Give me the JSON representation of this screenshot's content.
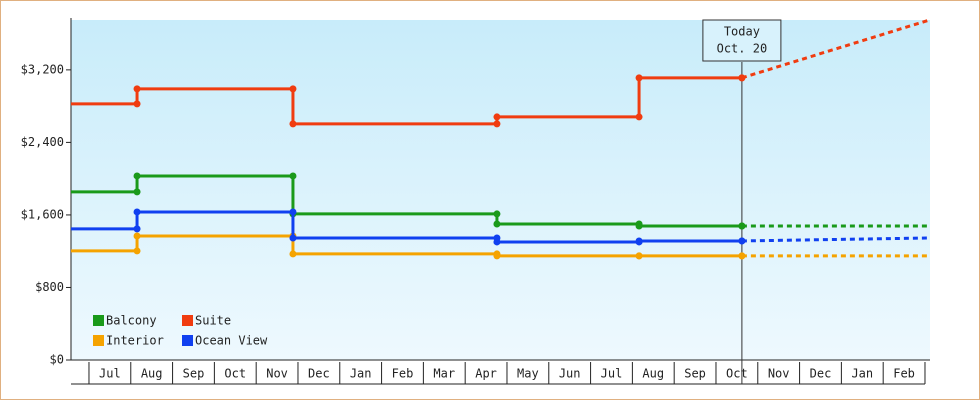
{
  "chart_data": {
    "type": "step-line",
    "xlim": [
      -0.43,
      20.12
    ],
    "xticks": [
      {
        "value": 0.5,
        "label": "Jul"
      },
      {
        "value": 1.5,
        "label": "Aug"
      },
      {
        "value": 2.5,
        "label": "Sep"
      },
      {
        "value": 3.5,
        "label": "Oct"
      },
      {
        "value": 4.5,
        "label": "Nov"
      },
      {
        "value": 5.5,
        "label": "Dec"
      },
      {
        "value": 6.5,
        "label": "Jan"
      },
      {
        "value": 7.5,
        "label": "Feb"
      },
      {
        "value": 8.5,
        "label": "Mar"
      },
      {
        "value": 9.5,
        "label": "Apr"
      },
      {
        "value": 10.5,
        "label": "May"
      },
      {
        "value": 11.5,
        "label": "Jun"
      },
      {
        "value": 12.5,
        "label": "Jul"
      },
      {
        "value": 13.5,
        "label": "Aug"
      },
      {
        "value": 14.5,
        "label": "Sep"
      },
      {
        "value": 15.5,
        "label": "Oct"
      },
      {
        "value": 16.5,
        "label": "Nov"
      },
      {
        "value": 17.5,
        "label": "Dec"
      },
      {
        "value": 18.5,
        "label": "Jan"
      },
      {
        "value": 19.5,
        "label": "Feb"
      }
    ],
    "ylim": [
      0,
      3750
    ],
    "yticks": [
      {
        "value": 0,
        "label": "$0"
      },
      {
        "value": 800,
        "label": "$800"
      },
      {
        "value": 1600,
        "label": "$1,600"
      },
      {
        "value": 2400,
        "label": "$2,400"
      },
      {
        "value": 3200,
        "label": "$3,200"
      }
    ],
    "today": {
      "x": 15.62,
      "label": [
        "Today",
        "Oct. 20"
      ]
    },
    "series": [
      {
        "name": "Balcony",
        "color": "#1a9a1a",
        "x": [
          -0.43,
          1.15,
          4.88,
          9.76,
          13.16,
          15.62
        ],
        "values": [
          1854,
          2030,
          1611,
          1500,
          1478,
          1478
        ],
        "projection": {
          "x": [
            15.62,
            20.12
          ],
          "values": [
            1478,
            1478
          ]
        }
      },
      {
        "name": "Suite",
        "color": "#f03c10",
        "x": [
          -0.43,
          1.15,
          4.88,
          9.76,
          13.16,
          15.62
        ],
        "values": [
          2825,
          2990,
          2604,
          2681,
          3112,
          3112
        ],
        "projection": {
          "x": [
            15.62,
            20.12
          ],
          "values": [
            3112,
            3752
          ]
        }
      },
      {
        "name": "Interior",
        "color": "#f5a300",
        "x": [
          -0.43,
          1.15,
          4.88,
          9.76,
          13.16,
          15.62
        ],
        "values": [
          1203,
          1368,
          1170,
          1148,
          1148,
          1148
        ],
        "projection": {
          "x": [
            15.62,
            20.12
          ],
          "values": [
            1148,
            1148
          ]
        }
      },
      {
        "name": "Ocean View",
        "color": "#1040f0",
        "x": [
          -0.43,
          1.15,
          4.88,
          9.76,
          13.16,
          15.62
        ],
        "values": [
          1446,
          1633,
          1346,
          1302,
          1313,
          1313
        ],
        "projection": {
          "x": [
            15.62,
            20.12
          ],
          "values": [
            1313,
            1346
          ]
        }
      }
    ]
  }
}
